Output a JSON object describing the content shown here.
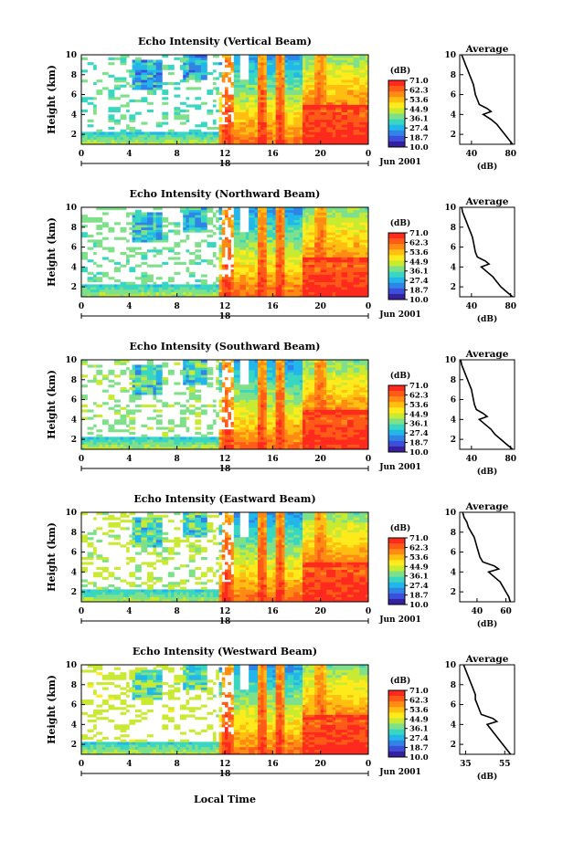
{
  "xlabel": "Local Time",
  "colorbar": {
    "unit": "(dB)",
    "ticks": [
      "71.0",
      "62.3",
      "53.6",
      "44.9",
      "36.1",
      "27.4",
      "18.7",
      "10.0"
    ],
    "colors": [
      "#ff2a1e",
      "#ff5a18",
      "#ff8a14",
      "#ffbe10",
      "#ffea1c",
      "#c9ea33",
      "#7fe08a",
      "#39d6c2",
      "#22b6ea",
      "#2f84e6",
      "#3b4fdc",
      "#37209e"
    ]
  },
  "time_ticks": [
    "0",
    "4",
    "8",
    "12",
    "16",
    "20",
    "0"
  ],
  "height_ticks": [
    "2",
    "4",
    "6",
    "8",
    "10"
  ],
  "avg_height_ticks": [
    "2",
    "4",
    "6",
    "8",
    "10"
  ],
  "avg_title": "Average",
  "avg_unit": "(dB)",
  "chart_data": [
    {
      "type": "heatmap",
      "title": "Echo Intensity (Vertical Beam)",
      "ylabel": "Height (km)",
      "date_label": "Jun 2001",
      "day_label": "18",
      "xlim": [
        0,
        24
      ],
      "ylim": [
        1,
        10
      ],
      "zlim": [
        10.0,
        71.0
      ],
      "average_profile": {
        "xticks": [
          "40",
          "80"
        ],
        "xlim": [
          28,
          84
        ],
        "height": [
          1.0,
          1.5,
          2.0,
          2.5,
          3.0,
          3.5,
          4.0,
          4.3,
          4.6,
          5.0,
          5.5,
          6.0,
          6.5,
          7.0,
          7.5,
          8.0,
          8.5,
          9.0,
          9.5,
          10.0
        ],
        "value": [
          82,
          78,
          74,
          70,
          66,
          60,
          52,
          60,
          56,
          48,
          46,
          44,
          43,
          42,
          40,
          38,
          36,
          34,
          32,
          30
        ]
      }
    },
    {
      "type": "heatmap",
      "title": "Echo Intensity (Northward Beam)",
      "ylabel": "Height (km)",
      "date_label": "Jun 2001",
      "day_label": "18",
      "xlim": [
        0,
        24
      ],
      "ylim": [
        1,
        10
      ],
      "zlim": [
        10.0,
        71.0
      ],
      "average_profile": {
        "xticks": [
          "40",
          "80"
        ],
        "xlim": [
          28,
          84
        ],
        "height": [
          1.0,
          1.5,
          2.0,
          2.5,
          3.0,
          3.5,
          4.0,
          4.3,
          4.6,
          5.0,
          5.5,
          6.0,
          6.5,
          7.0,
          7.5,
          8.0,
          8.5,
          9.0,
          9.5,
          10.0
        ],
        "value": [
          82,
          76,
          70,
          66,
          62,
          56,
          50,
          58,
          54,
          46,
          44,
          43,
          42,
          41,
          39,
          37,
          35,
          33,
          31,
          30
        ]
      }
    },
    {
      "type": "heatmap",
      "title": "Echo Intensity (Southward Beam)",
      "ylabel": "Height (km)",
      "date_label": "Jun 2001",
      "day_label": "18",
      "xlim": [
        0,
        24
      ],
      "ylim": [
        1,
        10
      ],
      "zlim": [
        10.0,
        71.0
      ],
      "average_profile": {
        "xticks": [
          "40",
          "80"
        ],
        "xlim": [
          28,
          84
        ],
        "height": [
          1.0,
          1.5,
          2.0,
          2.5,
          3.0,
          3.5,
          4.0,
          4.3,
          4.6,
          5.0,
          5.5,
          6.0,
          6.5,
          7.0,
          7.5,
          8.0,
          8.5,
          9.0,
          9.5,
          10.0
        ],
        "value": [
          82,
          76,
          70,
          64,
          60,
          54,
          48,
          56,
          52,
          45,
          43,
          42,
          41,
          40,
          38,
          36,
          34,
          32,
          30,
          29
        ]
      }
    },
    {
      "type": "heatmap",
      "title": "Echo Intensity (Eastward Beam)",
      "ylabel": "Height (km)",
      "date_label": "Jun 2001",
      "day_label": "18",
      "xlim": [
        0,
        24
      ],
      "ylim": [
        1,
        10
      ],
      "zlim": [
        10.0,
        71.0
      ],
      "average_profile": {
        "xticks": [
          "40",
          "60"
        ],
        "xlim": [
          28,
          66
        ],
        "height": [
          1.0,
          1.5,
          2.0,
          2.5,
          3.0,
          3.5,
          4.0,
          4.3,
          4.6,
          5.0,
          5.5,
          6.0,
          6.5,
          7.0,
          7.5,
          8.0,
          8.5,
          9.0,
          9.5,
          10.0
        ],
        "value": [
          63,
          62,
          60,
          58,
          56,
          52,
          48,
          55,
          52,
          44,
          42,
          41,
          40,
          39,
          38,
          36,
          34,
          33,
          31,
          30
        ]
      }
    },
    {
      "type": "heatmap",
      "title": "Echo Intensity (Westward Beam)",
      "ylabel": "Height (km)",
      "date_label": "Jun 2001",
      "day_label": "18",
      "xlim": [
        0,
        24
      ],
      "ylim": [
        1,
        10
      ],
      "zlim": [
        10.0,
        71.0
      ],
      "average_profile": {
        "xticks": [
          "35",
          "55"
        ],
        "xlim": [
          32,
          60
        ],
        "height": [
          1.0,
          1.5,
          2.0,
          2.5,
          3.0,
          3.5,
          4.0,
          4.3,
          4.6,
          5.0,
          5.5,
          6.0,
          6.5,
          7.0,
          7.5,
          8.0,
          8.5,
          9.0,
          9.5,
          10.0
        ],
        "value": [
          58,
          56,
          54,
          52,
          50,
          48,
          46,
          51,
          49,
          43,
          42,
          41,
          40,
          40,
          39,
          38,
          37,
          36,
          35,
          34
        ]
      }
    }
  ]
}
